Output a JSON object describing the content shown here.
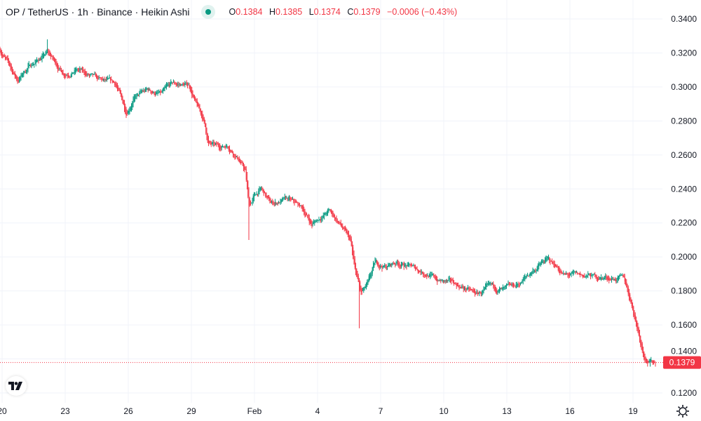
{
  "header": {
    "title": "OP / TetherUS · 1h · Binance · Heikin Ashi",
    "status_color": "#089981",
    "ohlc": {
      "o_label": "O",
      "o": "0.1384",
      "h_label": "H",
      "h": "0.1385",
      "l_label": "L",
      "l": "0.1374",
      "c_label": "C",
      "c": "0.1379",
      "change": "−0.0006 (−0.43%)"
    }
  },
  "current_price_label": "0.1379",
  "colors": {
    "up": "#089981",
    "down": "#f23645",
    "grid": "#f0f3fa",
    "text": "#131722"
  },
  "chart_data": {
    "type": "candlestick",
    "style": "Heikin Ashi",
    "interval": "1h",
    "symbol": "OP/USDT",
    "ylim": [
      0.115,
      0.345
    ],
    "y_ticks": [
      "0.3400",
      "0.3200",
      "0.3000",
      "0.2800",
      "0.2600",
      "0.2400",
      "0.2200",
      "0.2000",
      "0.1800",
      "0.1600",
      "0.1400",
      "0.1200"
    ],
    "x_ticks": [
      {
        "day": 0,
        "label": "20"
      },
      {
        "day": 3,
        "label": "23"
      },
      {
        "day": 6,
        "label": "26"
      },
      {
        "day": 9,
        "label": "29"
      },
      {
        "day": 12,
        "label": "Feb"
      },
      {
        "day": 15,
        "label": "4"
      },
      {
        "day": 18,
        "label": "7"
      },
      {
        "day": 21,
        "label": "10"
      },
      {
        "day": 24,
        "label": "13"
      },
      {
        "day": 27,
        "label": "16"
      },
      {
        "day": 30,
        "label": "19"
      }
    ],
    "x_unit": "days since Jan 20",
    "approx_close_path": [
      [
        -0.1,
        0.322
      ],
      [
        0.73,
        0.3037
      ],
      [
        1.23,
        0.312
      ],
      [
        2.17,
        0.32
      ],
      [
        2.9,
        0.308
      ],
      [
        3.57,
        0.31
      ],
      [
        4.57,
        0.3037
      ],
      [
        5.4,
        0.3016
      ],
      [
        5.9,
        0.285
      ],
      [
        6.23,
        0.2934
      ],
      [
        6.9,
        0.298
      ],
      [
        7.57,
        0.2955
      ],
      [
        8.07,
        0.3016
      ],
      [
        8.9,
        0.301
      ],
      [
        9.23,
        0.289
      ],
      [
        9.57,
        0.281
      ],
      [
        9.8,
        0.2665
      ],
      [
        10.23,
        0.2645
      ],
      [
        10.73,
        0.266
      ],
      [
        11.23,
        0.258
      ],
      [
        11.57,
        0.25
      ],
      [
        11.73,
        0.229
      ],
      [
        11.97,
        0.2356
      ],
      [
        12.3,
        0.24
      ],
      [
        12.73,
        0.2314
      ],
      [
        13.57,
        0.2335
      ],
      [
        14.23,
        0.229
      ],
      [
        14.73,
        0.219
      ],
      [
        15.07,
        0.223
      ],
      [
        15.57,
        0.227
      ],
      [
        16.07,
        0.219
      ],
      [
        16.57,
        0.2087
      ],
      [
        16.73,
        0.194
      ],
      [
        17.07,
        0.1778
      ],
      [
        17.4,
        0.184
      ],
      [
        17.73,
        0.1964
      ],
      [
        18.23,
        0.194
      ],
      [
        18.73,
        0.197
      ],
      [
        19.57,
        0.1935
      ],
      [
        20.23,
        0.19
      ],
      [
        20.73,
        0.186
      ],
      [
        21.57,
        0.184
      ],
      [
        22.57,
        0.1778
      ],
      [
        23.23,
        0.182
      ],
      [
        23.9,
        0.18
      ],
      [
        24.57,
        0.184
      ],
      [
        25.23,
        0.192
      ],
      [
        25.9,
        0.1984
      ],
      [
        26.4,
        0.194
      ],
      [
        26.73,
        0.189
      ],
      [
        27.57,
        0.189
      ],
      [
        28.57,
        0.188
      ],
      [
        29.57,
        0.187
      ],
      [
        29.9,
        0.1737
      ],
      [
        30.23,
        0.157
      ],
      [
        30.5,
        0.1427
      ],
      [
        30.73,
        0.1385
      ],
      [
        31.07,
        0.1379
      ]
    ],
    "notable_wicks": [
      {
        "day": 2.17,
        "high": 0.328
      },
      {
        "day": 11.73,
        "low": 0.21
      },
      {
        "day": 17.0,
        "low": 0.158
      },
      {
        "day": 30.8,
        "low": 0.1355
      }
    ],
    "last_price": 0.1379
  }
}
